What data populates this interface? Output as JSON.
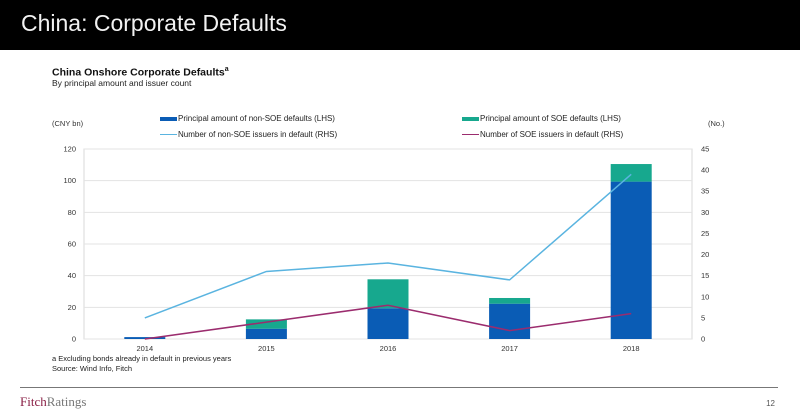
{
  "header": {
    "title": "China: Corporate Defaults"
  },
  "chart_title": "China Onshore Corporate Defaults",
  "chart_title_superscript": "a",
  "chart_subtitle": "By principal amount and issuer count",
  "left_axis_unit": "(CNY bn)",
  "right_axis_unit": "(No.)",
  "colors": {
    "non_soe_bar": "#0a5cb5",
    "soe_bar": "#17a88e",
    "non_soe_line": "#5ab4e0",
    "soe_line": "#9b2c6e",
    "header_bg": "#000000",
    "logo_fitch": "#8a1f45"
  },
  "chart_data": {
    "type": "bar",
    "subtype": "stacked-bar-with-lines-dual-axis",
    "title": "China Onshore Corporate Defaults",
    "subtitle": "By principal amount and issuer count",
    "categories": [
      "2014",
      "2015",
      "2016",
      "2017",
      "2018"
    ],
    "ylabel": "(CNY bn)",
    "y2label": "(No.)",
    "ylim": [
      0,
      120
    ],
    "yticks": [
      0,
      20,
      40,
      60,
      80,
      100,
      120
    ],
    "y2lim": [
      0,
      45
    ],
    "y2ticks": [
      0,
      5,
      10,
      15,
      20,
      25,
      30,
      35,
      40,
      45
    ],
    "grid": true,
    "legend_position": "top",
    "series": [
      {
        "name": "Principal amount of non-SOE defaults (LHS)",
        "type": "bar",
        "axis": "left",
        "stack": "principal",
        "values": [
          1.2,
          6.5,
          19.4,
          22.3,
          99.4
        ]
      },
      {
        "name": "Principal amount of SOE defaults (LHS)",
        "type": "bar",
        "axis": "left",
        "stack": "principal",
        "values": [
          0,
          5.9,
          18.3,
          3.6,
          11.1
        ]
      },
      {
        "name": "Number of non-SOE issuers in default (RHS)",
        "type": "line",
        "axis": "right",
        "values": [
          5,
          16,
          18,
          14,
          39
        ]
      },
      {
        "name": "Number of SOE issuers in default (RHS)",
        "type": "line",
        "axis": "right",
        "values": [
          0,
          4,
          8,
          2,
          6
        ]
      }
    ]
  },
  "footnotes": {
    "note": "a Excluding bonds already in default in previous years",
    "source": "Source: Wind Info, Fitch"
  },
  "footer": {
    "logo_part1": "Fitch",
    "logo_part2": "Ratings",
    "page_number": "12"
  }
}
